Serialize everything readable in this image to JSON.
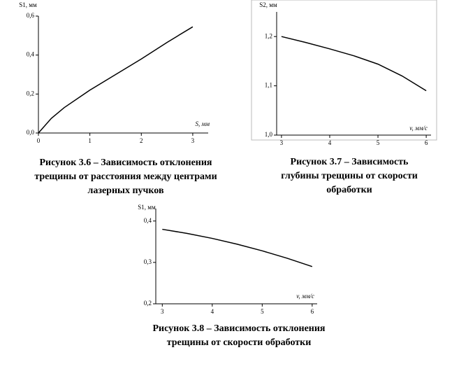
{
  "chart_data": [
    {
      "type": "line",
      "y_label": "S1, мм",
      "x_label": "S, мм",
      "caption": [
        "Рисунок 3.6 – Зависимость отклонения",
        "трещины от расстояния между центрами",
        "лазерных пучков"
      ],
      "x": [
        0,
        0.25,
        0.5,
        1,
        1.5,
        2,
        2.5,
        3
      ],
      "values": [
        0,
        0.075,
        0.13,
        0.22,
        0.3,
        0.38,
        0.465,
        0.545
      ],
      "color": "#000000",
      "xlim": [
        0,
        3.3
      ],
      "ylim": [
        0,
        0.6
      ],
      "xticks": [
        0,
        1,
        2,
        3
      ],
      "yticks": [
        {
          "value": 0,
          "label": "0,0"
        },
        {
          "value": 0.2,
          "label": "0,2"
        },
        {
          "value": 0.4,
          "label": "0,4"
        },
        {
          "value": 0.6,
          "label": "0,6"
        }
      ]
    },
    {
      "type": "line",
      "y_label": "S2, мм",
      "x_label": "v, мм/с",
      "caption": [
        "Рисунок 3.7 – Зависимость",
        "глубины трещины от скорости",
        "обработки"
      ],
      "x": [
        3,
        3.5,
        4,
        4.5,
        5,
        5.5,
        6
      ],
      "values": [
        1.2,
        1.188,
        1.175,
        1.161,
        1.144,
        1.12,
        1.09
      ],
      "color": "#000000",
      "xlim": [
        2.9,
        6.1
      ],
      "ylim": [
        1.0,
        1.25
      ],
      "xticks": [
        3,
        4,
        5,
        6
      ],
      "yticks": [
        {
          "value": 1.0,
          "label": "1,0"
        },
        {
          "value": 1.1,
          "label": "1,1"
        },
        {
          "value": 1.2,
          "label": "1,2"
        }
      ]
    },
    {
      "type": "line",
      "y_label": "S1, мм",
      "x_label": "v, мм/с",
      "caption": [
        "Рисунок 3.8 – Зависимость отклонения",
        "трещины от скорости обработки"
      ],
      "x": [
        3,
        3.5,
        4,
        4.5,
        5,
        5.5,
        6
      ],
      "values": [
        0.38,
        0.37,
        0.358,
        0.344,
        0.328,
        0.31,
        0.29
      ],
      "color": "#000000",
      "xlim": [
        2.87,
        6.1
      ],
      "ylim": [
        0.2,
        0.43
      ],
      "xticks": [
        3,
        4,
        5,
        6
      ],
      "yticks": [
        {
          "value": 0.2,
          "label": "0,2"
        },
        {
          "value": 0.3,
          "label": "0,3"
        },
        {
          "value": 0.4,
          "label": "0,4"
        }
      ]
    }
  ]
}
